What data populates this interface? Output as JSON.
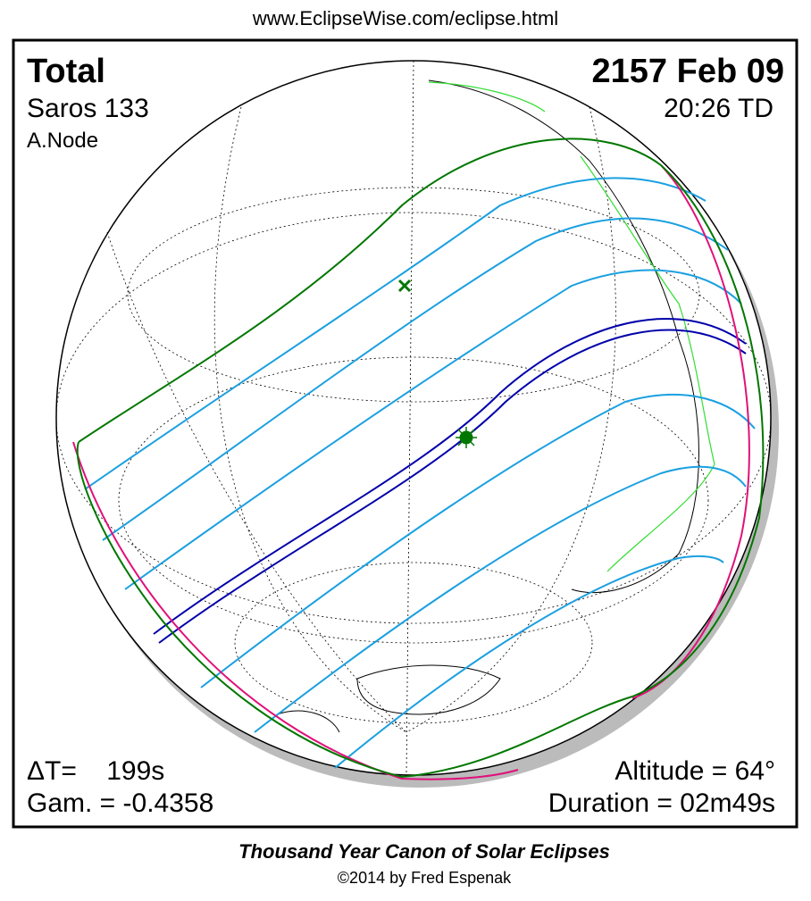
{
  "header": {
    "url": "www.EclipseWise.com/eclipse.html"
  },
  "panel": {
    "type": "Total",
    "date": "2157 Feb 09",
    "saros": "Saros 133",
    "time": "20:26 TD",
    "node": "A.Node",
    "delta_t": "ΔT=    199s",
    "gamma": "Gam. = -0.4358",
    "altitude": "Altitude = 64°",
    "duration": "Duration = 02m49s"
  },
  "footer": {
    "title": "Thousand Year Canon of Solar Eclipses",
    "credit": "©2014 by Fred Espenak"
  }
}
